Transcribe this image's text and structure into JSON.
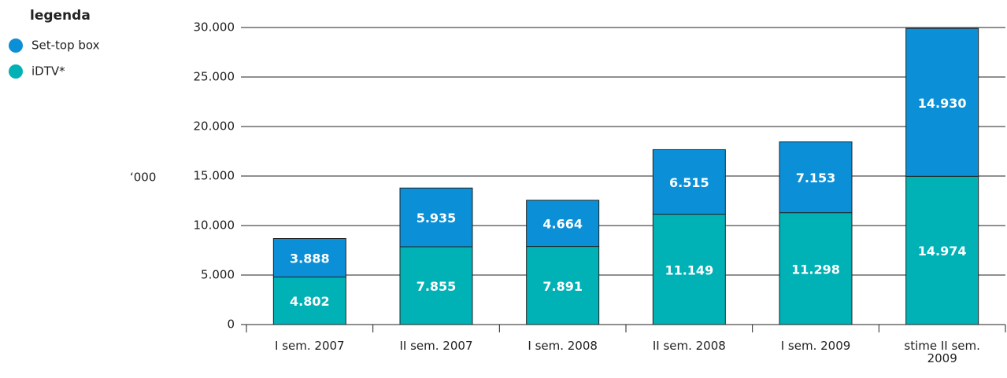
{
  "chart_data": {
    "type": "stacked_bar",
    "legend_title": "legenda",
    "y_label": "‘000",
    "categories": [
      "I sem. 2007",
      "II sem. 2007",
      "I sem. 2008",
      "II sem. 2008",
      "I sem. 2009",
      "stime II sem. 2009"
    ],
    "series": [
      {
        "name": "iDTV*",
        "color": "#00b1b6",
        "values": [
          4802,
          7855,
          7891,
          11149,
          11298,
          14974
        ],
        "value_labels": [
          "4.802",
          "7.855",
          "7.891",
          "11.149",
          "11.298",
          "14.974"
        ]
      },
      {
        "name": "Set-top box",
        "color": "#0b8fd6",
        "values": [
          3888,
          5935,
          4664,
          6515,
          7153,
          14930
        ],
        "value_labels": [
          "3.888",
          "5.935",
          "4.664",
          "6.515",
          "7.153",
          "14.930"
        ]
      }
    ],
    "ylim": [
      0,
      30000
    ],
    "yticks": [
      0,
      {
        "value": 5000,
        "label": "5.000"
      },
      {
        "value": 10000,
        "label": "10.000"
      },
      {
        "value": 15000,
        "label": "15.000"
      },
      {
        "value": 20000,
        "label": "20.000"
      },
      {
        "value": 25000,
        "label": "25.000"
      },
      {
        "value": 30000,
        "label": "30.000"
      }
    ],
    "grid": true
  }
}
